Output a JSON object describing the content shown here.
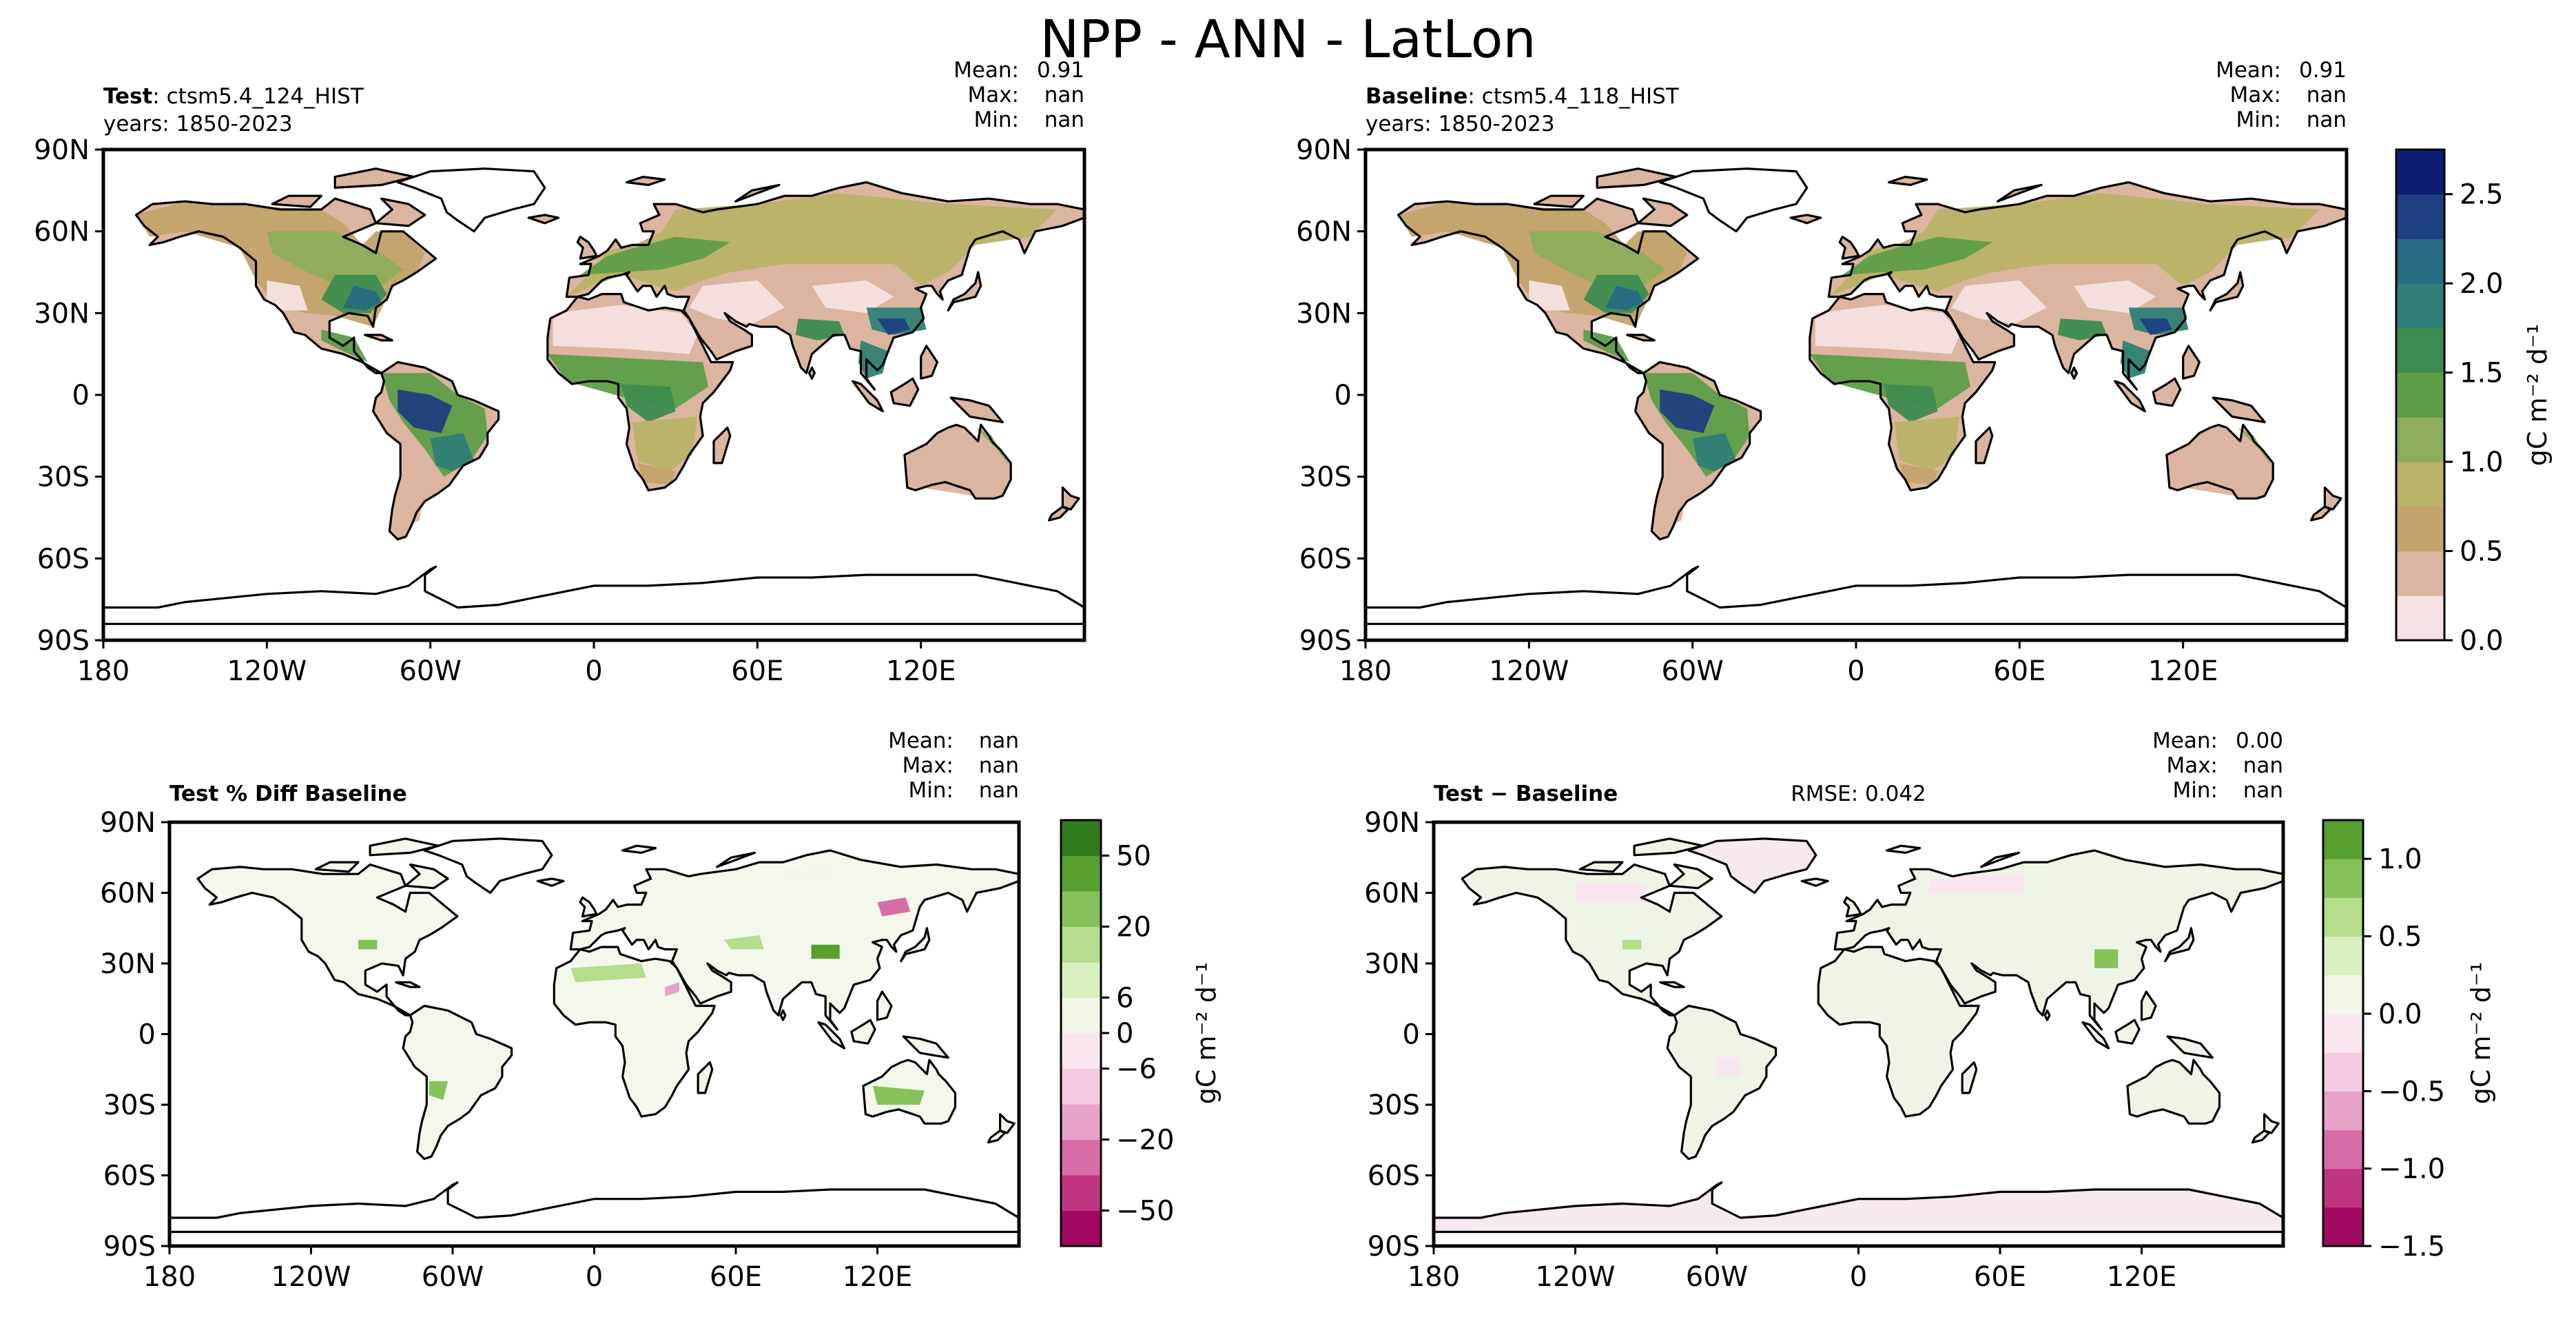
{
  "suptitle": "NPP - ANN - LatLon",
  "colors": {
    "abs_levels": [
      "#f5e1e1",
      "#dbb5a0",
      "#c2a46a",
      "#b8b366",
      "#8ead5c",
      "#5e9e48",
      "#3d8c4f",
      "#2f7f76",
      "#276a83",
      "#1d3f7f",
      "#0c1d73"
    ],
    "diff_levels": [
      "#a1085f",
      "#c0357f",
      "#d86ea7",
      "#e8a2c8",
      "#f4cbe1",
      "#fae6f0",
      "#f1f6e8",
      "#d9efc0",
      "#b5dd8c",
      "#86c259",
      "#57a02f",
      "#2f7a1a"
    ],
    "ocean": "#ffffff",
    "coast": "#000000"
  },
  "chart_data": [
    {
      "type": "heatmap",
      "panel": "test",
      "title_bold": "Test",
      "title_rest": ": ctsm5.4_124_HIST",
      "years": "years: 1850-2023",
      "stats": [
        [
          "Mean:",
          "0.91"
        ],
        [
          "Max:",
          "nan"
        ],
        [
          "Min:",
          "nan"
        ]
      ],
      "rmse": "",
      "yticks": [
        "90N",
        "60N",
        "30N",
        "0",
        "30S",
        "60S",
        "90S"
      ],
      "xticks": [
        "180",
        "120W",
        "60W",
        "0",
        "60E",
        "120E"
      ],
      "xlim": [
        -180,
        180
      ],
      "ylim": [
        -90,
        90
      ]
    },
    {
      "type": "heatmap",
      "panel": "baseline",
      "title_bold": "Baseline",
      "title_rest": ": ctsm5.4_118_HIST",
      "years": "years: 1850-2023",
      "stats": [
        [
          "Mean:",
          "0.91"
        ],
        [
          "Max:",
          "nan"
        ],
        [
          "Min:",
          "nan"
        ]
      ],
      "rmse": "",
      "yticks": [
        "90N",
        "60N",
        "30N",
        "0",
        "30S",
        "60S",
        "90S"
      ],
      "xticks": [
        "180",
        "120W",
        "60W",
        "0",
        "60E",
        "120E"
      ],
      "xlim": [
        -180,
        180
      ],
      "ylim": [
        -90,
        90
      ]
    },
    {
      "type": "heatmap",
      "panel": "pct_diff",
      "title_bold": "Test % Diff Baseline",
      "title_rest": "",
      "years": "",
      "stats": [
        [
          "Mean:",
          "nan"
        ],
        [
          "Max:",
          "nan"
        ],
        [
          "Min:",
          "nan"
        ]
      ],
      "rmse": "",
      "yticks": [
        "90N",
        "60N",
        "30N",
        "0",
        "30S",
        "60S",
        "90S"
      ],
      "xticks": [
        "180",
        "120W",
        "60W",
        "0",
        "60E",
        "120E"
      ],
      "xlim": [
        -180,
        180
      ],
      "ylim": [
        -90,
        90
      ]
    },
    {
      "type": "heatmap",
      "panel": "diff",
      "title_bold": "Test − Baseline",
      "title_rest": "",
      "years": "",
      "stats": [
        [
          "Mean:",
          "0.00"
        ],
        [
          "Max:",
          "nan"
        ],
        [
          "Min:",
          "nan"
        ]
      ],
      "rmse": "RMSE: 0.042",
      "yticks": [
        "90N",
        "60N",
        "30N",
        "0",
        "30S",
        "60S",
        "90S"
      ],
      "xticks": [
        "180",
        "120W",
        "60W",
        "0",
        "60E",
        "120E"
      ],
      "xlim": [
        -180,
        180
      ],
      "ylim": [
        -90,
        90
      ]
    }
  ],
  "colorbars": [
    {
      "name": "abs",
      "label": "gC m⁻² d⁻¹",
      "ticks": [
        {
          "v": 0.0,
          "t": "0.0"
        },
        {
          "v": 0.5,
          "t": "0.5"
        },
        {
          "v": 1.0,
          "t": "1.0"
        },
        {
          "v": 1.5,
          "t": "1.5"
        },
        {
          "v": 2.0,
          "t": "2.0"
        },
        {
          "v": 2.5,
          "t": "2.5"
        }
      ],
      "range": [
        0,
        2.75
      ]
    },
    {
      "name": "pct",
      "label": "gC m⁻² d⁻¹",
      "ticks": [
        {
          "t": "50"
        },
        {
          "t": "20"
        },
        {
          "t": "6"
        },
        {
          "t": "0"
        },
        {
          "t": "−6"
        },
        {
          "t": "−20"
        },
        {
          "t": "−50"
        }
      ]
    },
    {
      "name": "diff",
      "label": "gC m⁻² d⁻¹",
      "ticks": [
        {
          "v": 1.0,
          "t": "1.0"
        },
        {
          "v": 0.5,
          "t": "0.5"
        },
        {
          "v": 0.0,
          "t": "0.0"
        },
        {
          "v": -0.5,
          "t": "−0.5"
        },
        {
          "v": -1.0,
          "t": "−1.0"
        },
        {
          "v": -1.5,
          "t": "−1.5"
        }
      ],
      "range": [
        -1.5,
        1.25
      ]
    }
  ]
}
